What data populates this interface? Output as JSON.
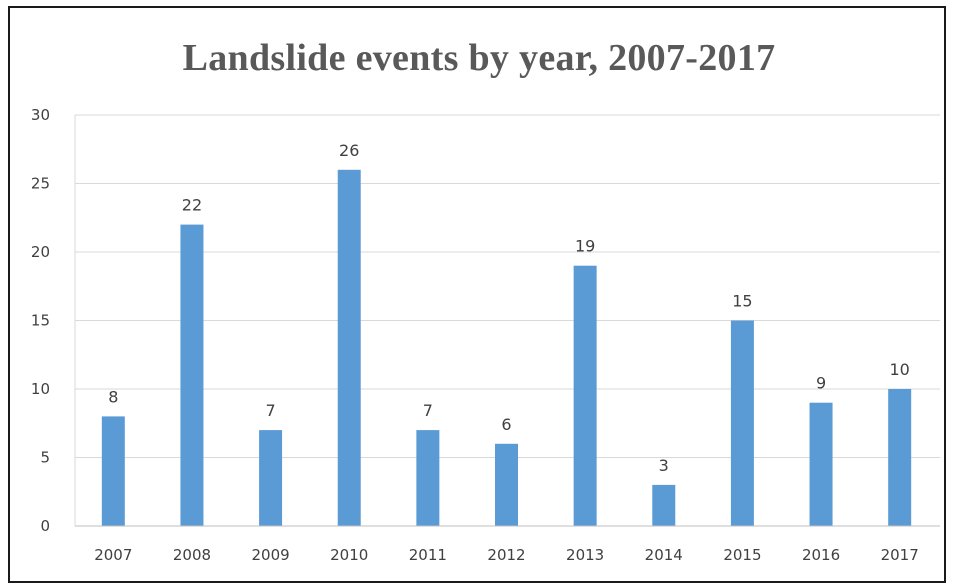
{
  "chart_data": {
    "type": "bar",
    "title": "Landslide events by year, 2007-2017",
    "xlabel": "",
    "ylabel": "",
    "categories": [
      "2007",
      "2008",
      "2009",
      "2010",
      "2011",
      "2012",
      "2013",
      "2014",
      "2015",
      "2016",
      "2017"
    ],
    "values": [
      8,
      22,
      7,
      26,
      7,
      6,
      19,
      3,
      15,
      9,
      10
    ],
    "ylim": [
      0,
      30
    ],
    "yticks": [
      0,
      5,
      10,
      15,
      20,
      25,
      30
    ],
    "grid": true,
    "data_labels": true,
    "legend": "none",
    "bar_color": "#5B9BD5"
  }
}
